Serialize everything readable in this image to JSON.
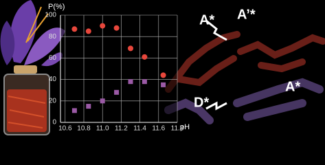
{
  "chart_data": {
    "type": "scatter",
    "y_label": "P(%)",
    "x_label": "pH",
    "xlim": [
      10.55,
      11.8
    ],
    "ylim": [
      0,
      100
    ],
    "xticks": [
      10.6,
      10.8,
      {
        "value": 11,
        "label": "11.0"
      },
      11.2,
      11.4,
      11.6,
      11.8
    ],
    "yticks": [
      0,
      20,
      40,
      60,
      80,
      100
    ],
    "grid": true,
    "series": [
      {
        "color": "#e8473c",
        "marker": "circle",
        "x": [
          10.7,
          10.85,
          11.0,
          11.15,
          11.3,
          11.45,
          11.65
        ],
        "values": [
          87,
          85,
          90,
          88,
          69,
          61,
          44
        ]
      },
      {
        "color": "#9b5aa6",
        "marker": "square",
        "x": [
          10.7,
          10.85,
          11.0,
          11.15,
          11.3,
          11.45,
          11.65
        ],
        "values": [
          11,
          15,
          20,
          28,
          38,
          38,
          35
        ]
      }
    ]
  },
  "labels": [
    "A*",
    "A’*",
    "D*",
    "A*"
  ]
}
